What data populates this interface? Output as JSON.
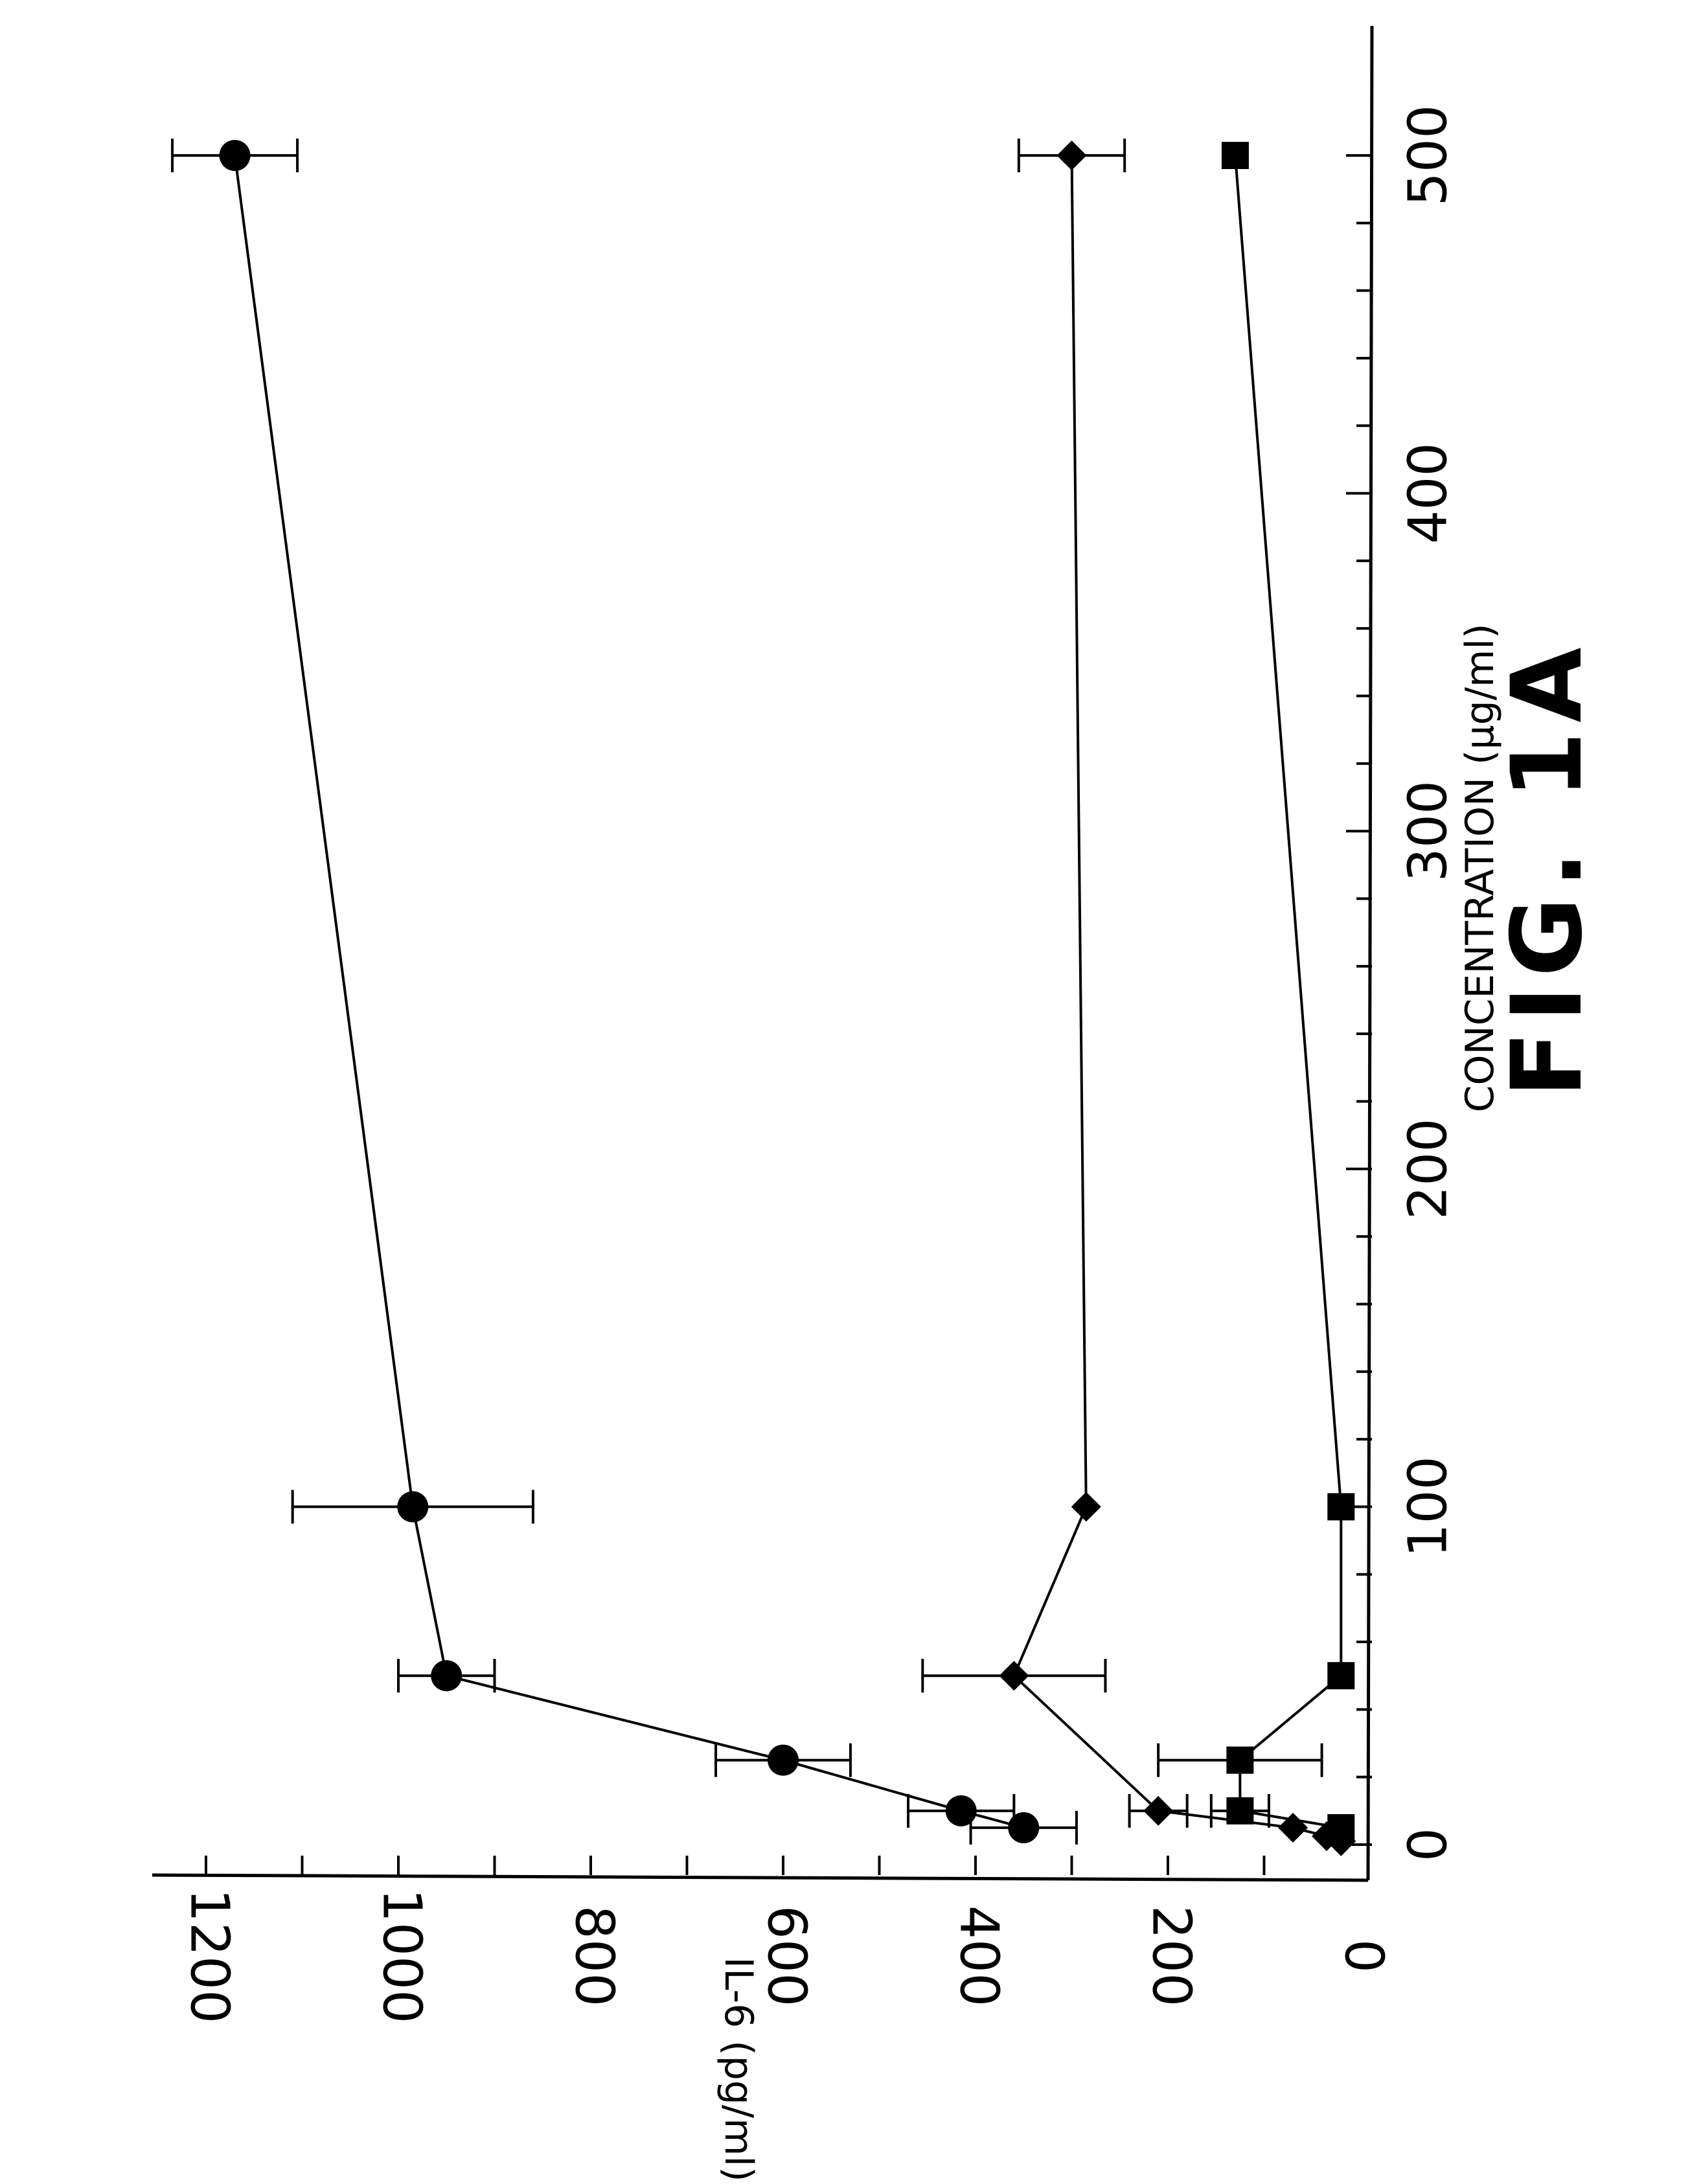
{
  "figure_caption": "FIG. 1A",
  "chart_data": {
    "type": "line",
    "title": "",
    "xlabel": "CONCENTRATION (µg/ml)",
    "ylabel": "IL-6 (pg/ml)",
    "xlim": [
      0,
      500
    ],
    "ylim": [
      0,
      1200
    ],
    "x_ticks": [
      "0",
      "100",
      "200",
      "300",
      "400",
      "500"
    ],
    "y_ticks": [
      "0",
      "200",
      "400",
      "600",
      "800",
      "1000",
      "1200"
    ],
    "grid": false,
    "series": [
      {
        "marker": "circle",
        "points": [
          {
            "x": 5,
            "y": 350,
            "err": 55
          },
          {
            "x": 10,
            "y": 415,
            "err": 55
          },
          {
            "x": 25,
            "y": 600,
            "err": 70
          },
          {
            "x": 50,
            "y": 950,
            "err": 50
          },
          {
            "x": 100,
            "y": 985,
            "err": 125
          },
          {
            "x": 500,
            "y": 1170,
            "err": 65
          }
        ]
      },
      {
        "marker": "diamond",
        "points": [
          {
            "x": 1,
            "y": 20
          },
          {
            "x": 2.5,
            "y": 35
          },
          {
            "x": 5,
            "y": 70
          },
          {
            "x": 10,
            "y": 210,
            "err": 30
          },
          {
            "x": 50,
            "y": 360,
            "err": 95
          },
          {
            "x": 100,
            "y": 285
          },
          {
            "x": 500,
            "y": 300,
            "err": 55
          }
        ]
      },
      {
        "marker": "square",
        "points": [
          {
            "x": 5,
            "y": 20
          },
          {
            "x": 10,
            "y": 125,
            "err": 30
          },
          {
            "x": 25,
            "y": 125,
            "err": 85
          },
          {
            "x": 50,
            "y": 20
          },
          {
            "x": 100,
            "y": 20
          },
          {
            "x": 500,
            "y": 130
          }
        ]
      }
    ]
  }
}
